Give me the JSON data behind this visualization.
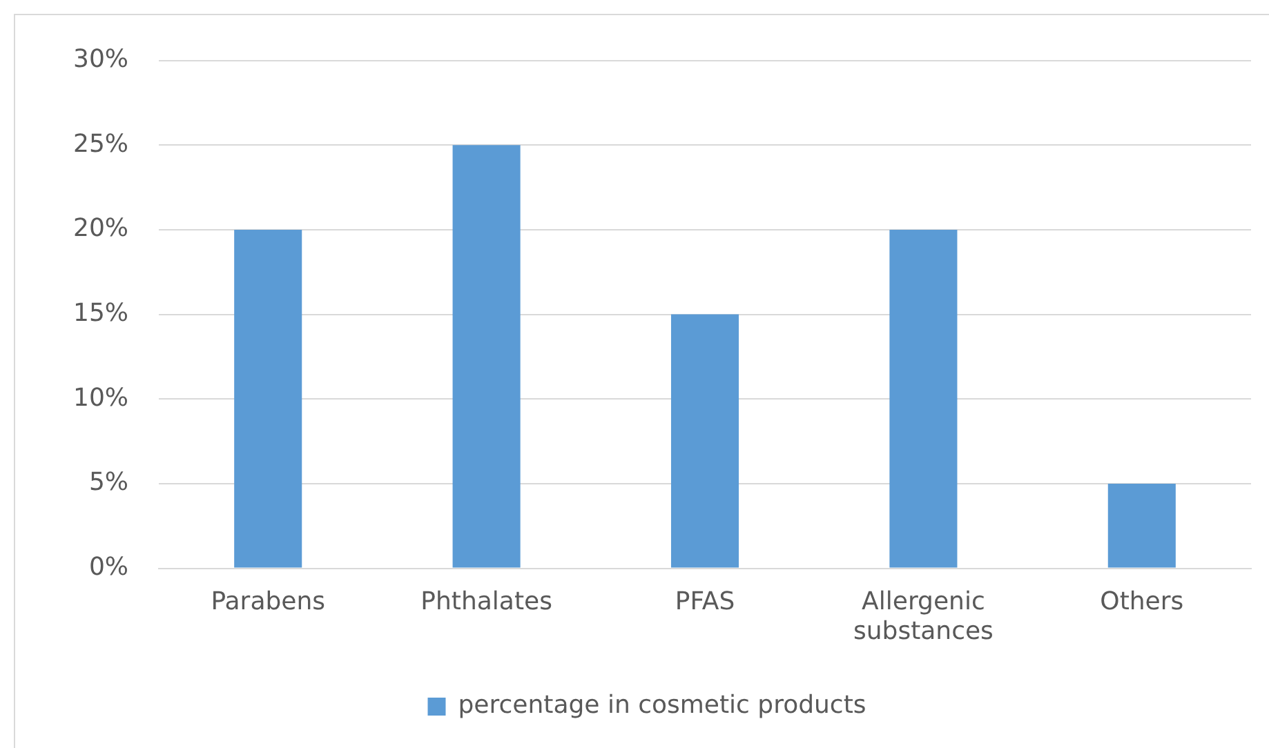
{
  "chart_data": {
    "type": "bar",
    "categories": [
      "Parabens",
      "Phthalates",
      "PFAS",
      "Allergenic substances",
      "Others"
    ],
    "series": [
      {
        "name": "percentage in cosmetic products",
        "color": "#5b9bd5",
        "values": [
          20,
          25,
          15,
          20,
          5
        ]
      }
    ],
    "ylim": [
      0,
      30
    ],
    "yticks": [
      {
        "value": 0,
        "label": "0%"
      },
      {
        "value": 5,
        "label": "5%"
      },
      {
        "value": 10,
        "label": "10%"
      },
      {
        "value": 15,
        "label": "15%"
      },
      {
        "value": 20,
        "label": "20%"
      },
      {
        "value": 25,
        "label": "25%"
      },
      {
        "value": 30,
        "label": "30%"
      }
    ],
    "grid": "y",
    "legend": "bottom"
  }
}
